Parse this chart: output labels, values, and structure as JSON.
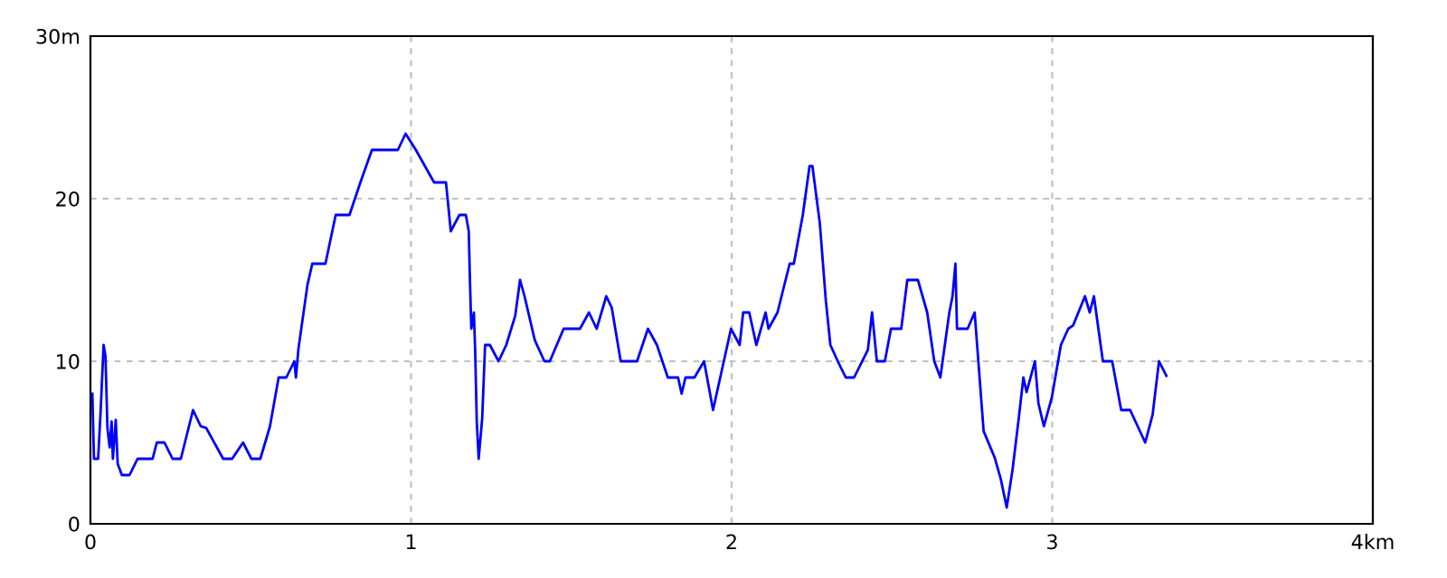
{
  "chart_data": {
    "type": "line",
    "x": [
      0.006,
      0.011,
      0.024,
      0.032,
      0.041,
      0.047,
      0.053,
      0.06,
      0.066,
      0.07,
      0.079,
      0.085,
      0.098,
      0.122,
      0.147,
      0.194,
      0.207,
      0.231,
      0.256,
      0.282,
      0.32,
      0.344,
      0.361,
      0.414,
      0.442,
      0.476,
      0.502,
      0.53,
      0.56,
      0.587,
      0.611,
      0.636,
      0.641,
      0.649,
      0.677,
      0.692,
      0.733,
      0.765,
      0.808,
      0.842,
      0.878,
      0.959,
      0.983,
      1.015,
      1.072,
      1.109,
      1.124,
      1.151,
      1.171,
      1.18,
      1.184,
      1.188,
      1.196,
      1.2,
      1.205,
      1.211,
      1.222,
      1.231,
      1.246,
      1.273,
      1.297,
      1.325,
      1.34,
      1.354,
      1.386,
      1.416,
      1.433,
      1.476,
      1.527,
      1.555,
      1.579,
      1.609,
      1.626,
      1.654,
      1.705,
      1.739,
      1.767,
      1.801,
      1.833,
      1.844,
      1.856,
      1.884,
      1.914,
      1.942,
      1.998,
      2.025,
      2.036,
      2.055,
      2.077,
      2.106,
      2.115,
      2.143,
      2.181,
      2.194,
      2.222,
      2.243,
      2.252,
      2.275,
      2.294,
      2.308,
      2.331,
      2.356,
      2.382,
      2.425,
      2.438,
      2.453,
      2.478,
      2.497,
      2.529,
      2.548,
      2.581,
      2.61,
      2.632,
      2.651,
      2.679,
      2.689,
      2.698,
      2.703,
      2.736,
      2.758,
      2.768,
      2.786,
      2.82,
      2.839,
      2.858,
      2.876,
      2.895,
      2.91,
      2.92,
      2.946,
      2.957,
      2.974,
      2.999,
      3.027,
      3.05,
      3.065,
      3.102,
      3.117,
      3.13,
      3.158,
      3.187,
      3.215,
      3.243,
      3.29,
      3.313,
      3.333,
      3.356
    ],
    "series": [
      {
        "color": "#0000ff",
        "values": [
          8,
          4,
          4,
          7,
          11,
          10.3,
          5.9,
          4.7,
          6.3,
          4,
          6.4,
          3.7,
          3,
          3,
          4,
          4,
          5,
          5,
          4,
          4,
          7,
          6,
          5.9,
          4,
          4,
          5,
          4,
          4,
          6,
          9,
          9,
          10,
          9,
          10.8,
          14.7,
          16,
          16,
          19,
          19,
          21,
          23,
          23,
          24,
          23,
          21,
          21,
          18,
          19,
          19,
          18,
          14.8,
          12,
          13,
          10.7,
          6.3,
          4,
          6.5,
          11,
          11,
          10,
          11,
          12.8,
          15,
          14,
          11.3,
          10,
          10,
          12,
          12,
          13,
          12,
          14,
          13.3,
          10,
          10,
          12,
          11,
          9,
          9,
          8,
          9,
          9,
          10,
          7,
          12,
          11,
          13,
          13,
          11,
          13,
          12,
          13,
          16,
          16,
          19,
          22,
          22,
          18.5,
          13.7,
          11,
          10,
          9,
          9,
          10.7,
          13,
          10,
          10,
          12,
          12,
          15,
          15,
          13,
          10,
          9,
          13,
          14,
          16,
          12,
          12,
          13,
          10.4,
          5.7,
          4.1,
          2.8,
          1,
          3.3,
          6.4,
          9,
          8.1,
          10,
          7.4,
          6,
          7.8,
          11,
          12,
          12.2,
          14,
          13,
          14,
          10,
          10,
          7,
          7,
          5,
          6.7,
          10,
          9.1
        ]
      }
    ],
    "xlim": [
      0,
      4
    ],
    "ylim": [
      0,
      30
    ],
    "xticks": [
      0,
      1,
      2,
      3,
      {
        "value": 4,
        "label": "4km"
      }
    ],
    "yticks": [
      0,
      10,
      20,
      {
        "value": 30,
        "label": "30m"
      }
    ],
    "grid": true,
    "line_style": "solid",
    "marker": "none"
  }
}
